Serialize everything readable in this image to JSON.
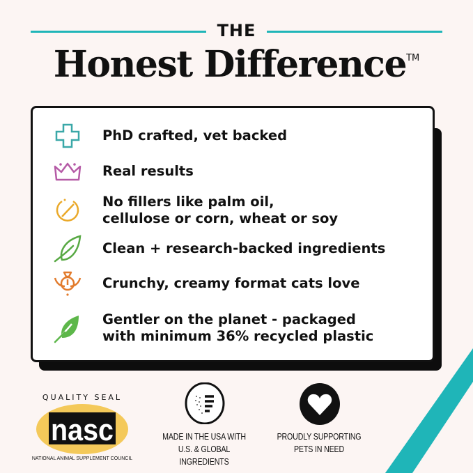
{
  "header": {
    "eyebrow": "THE",
    "title": "Honest Difference",
    "trademark": "TM"
  },
  "colors": {
    "accent": "#1fb5b8",
    "background": "#fcf5f3"
  },
  "features": [
    {
      "icon": "medical-cross-icon",
      "color": "#3aa8a8",
      "lines": [
        "PhD crafted, vet backed"
      ]
    },
    {
      "icon": "crown-icon",
      "color": "#b55aa6",
      "lines": [
        "Real results"
      ]
    },
    {
      "icon": "prohibited-icon",
      "color": "#eaa92a",
      "lines": [
        "No fillers like palm oil,",
        "cellulose or corn, wheat or soy"
      ]
    },
    {
      "icon": "leaf-outline-icon",
      "color": "#58a944",
      "lines": [
        "Clean + research-backed ingredients"
      ]
    },
    {
      "icon": "cat-face-icon",
      "color": "#e27b2c",
      "lines": [
        "Crunchy, creamy format cats love"
      ]
    },
    {
      "icon": "leaf-solid-icon",
      "color": "#5db74a",
      "lines": [
        "Gentler on the planet - packaged",
        "with minimum 36% recycled plastic"
      ]
    }
  ],
  "badges": {
    "nasc": {
      "top": "QUALITY SEAL",
      "logo": "nasc",
      "bottom": "NATIONAL ANIMAL SUPPLEMENT COUNCIL"
    },
    "usa": {
      "lines": [
        "MADE IN THE USA WITH",
        "U.S. & GLOBAL INGREDIENTS"
      ]
    },
    "pets": {
      "lines": [
        "PROUDLY SUPPORTING",
        "PETS IN NEED"
      ]
    }
  }
}
